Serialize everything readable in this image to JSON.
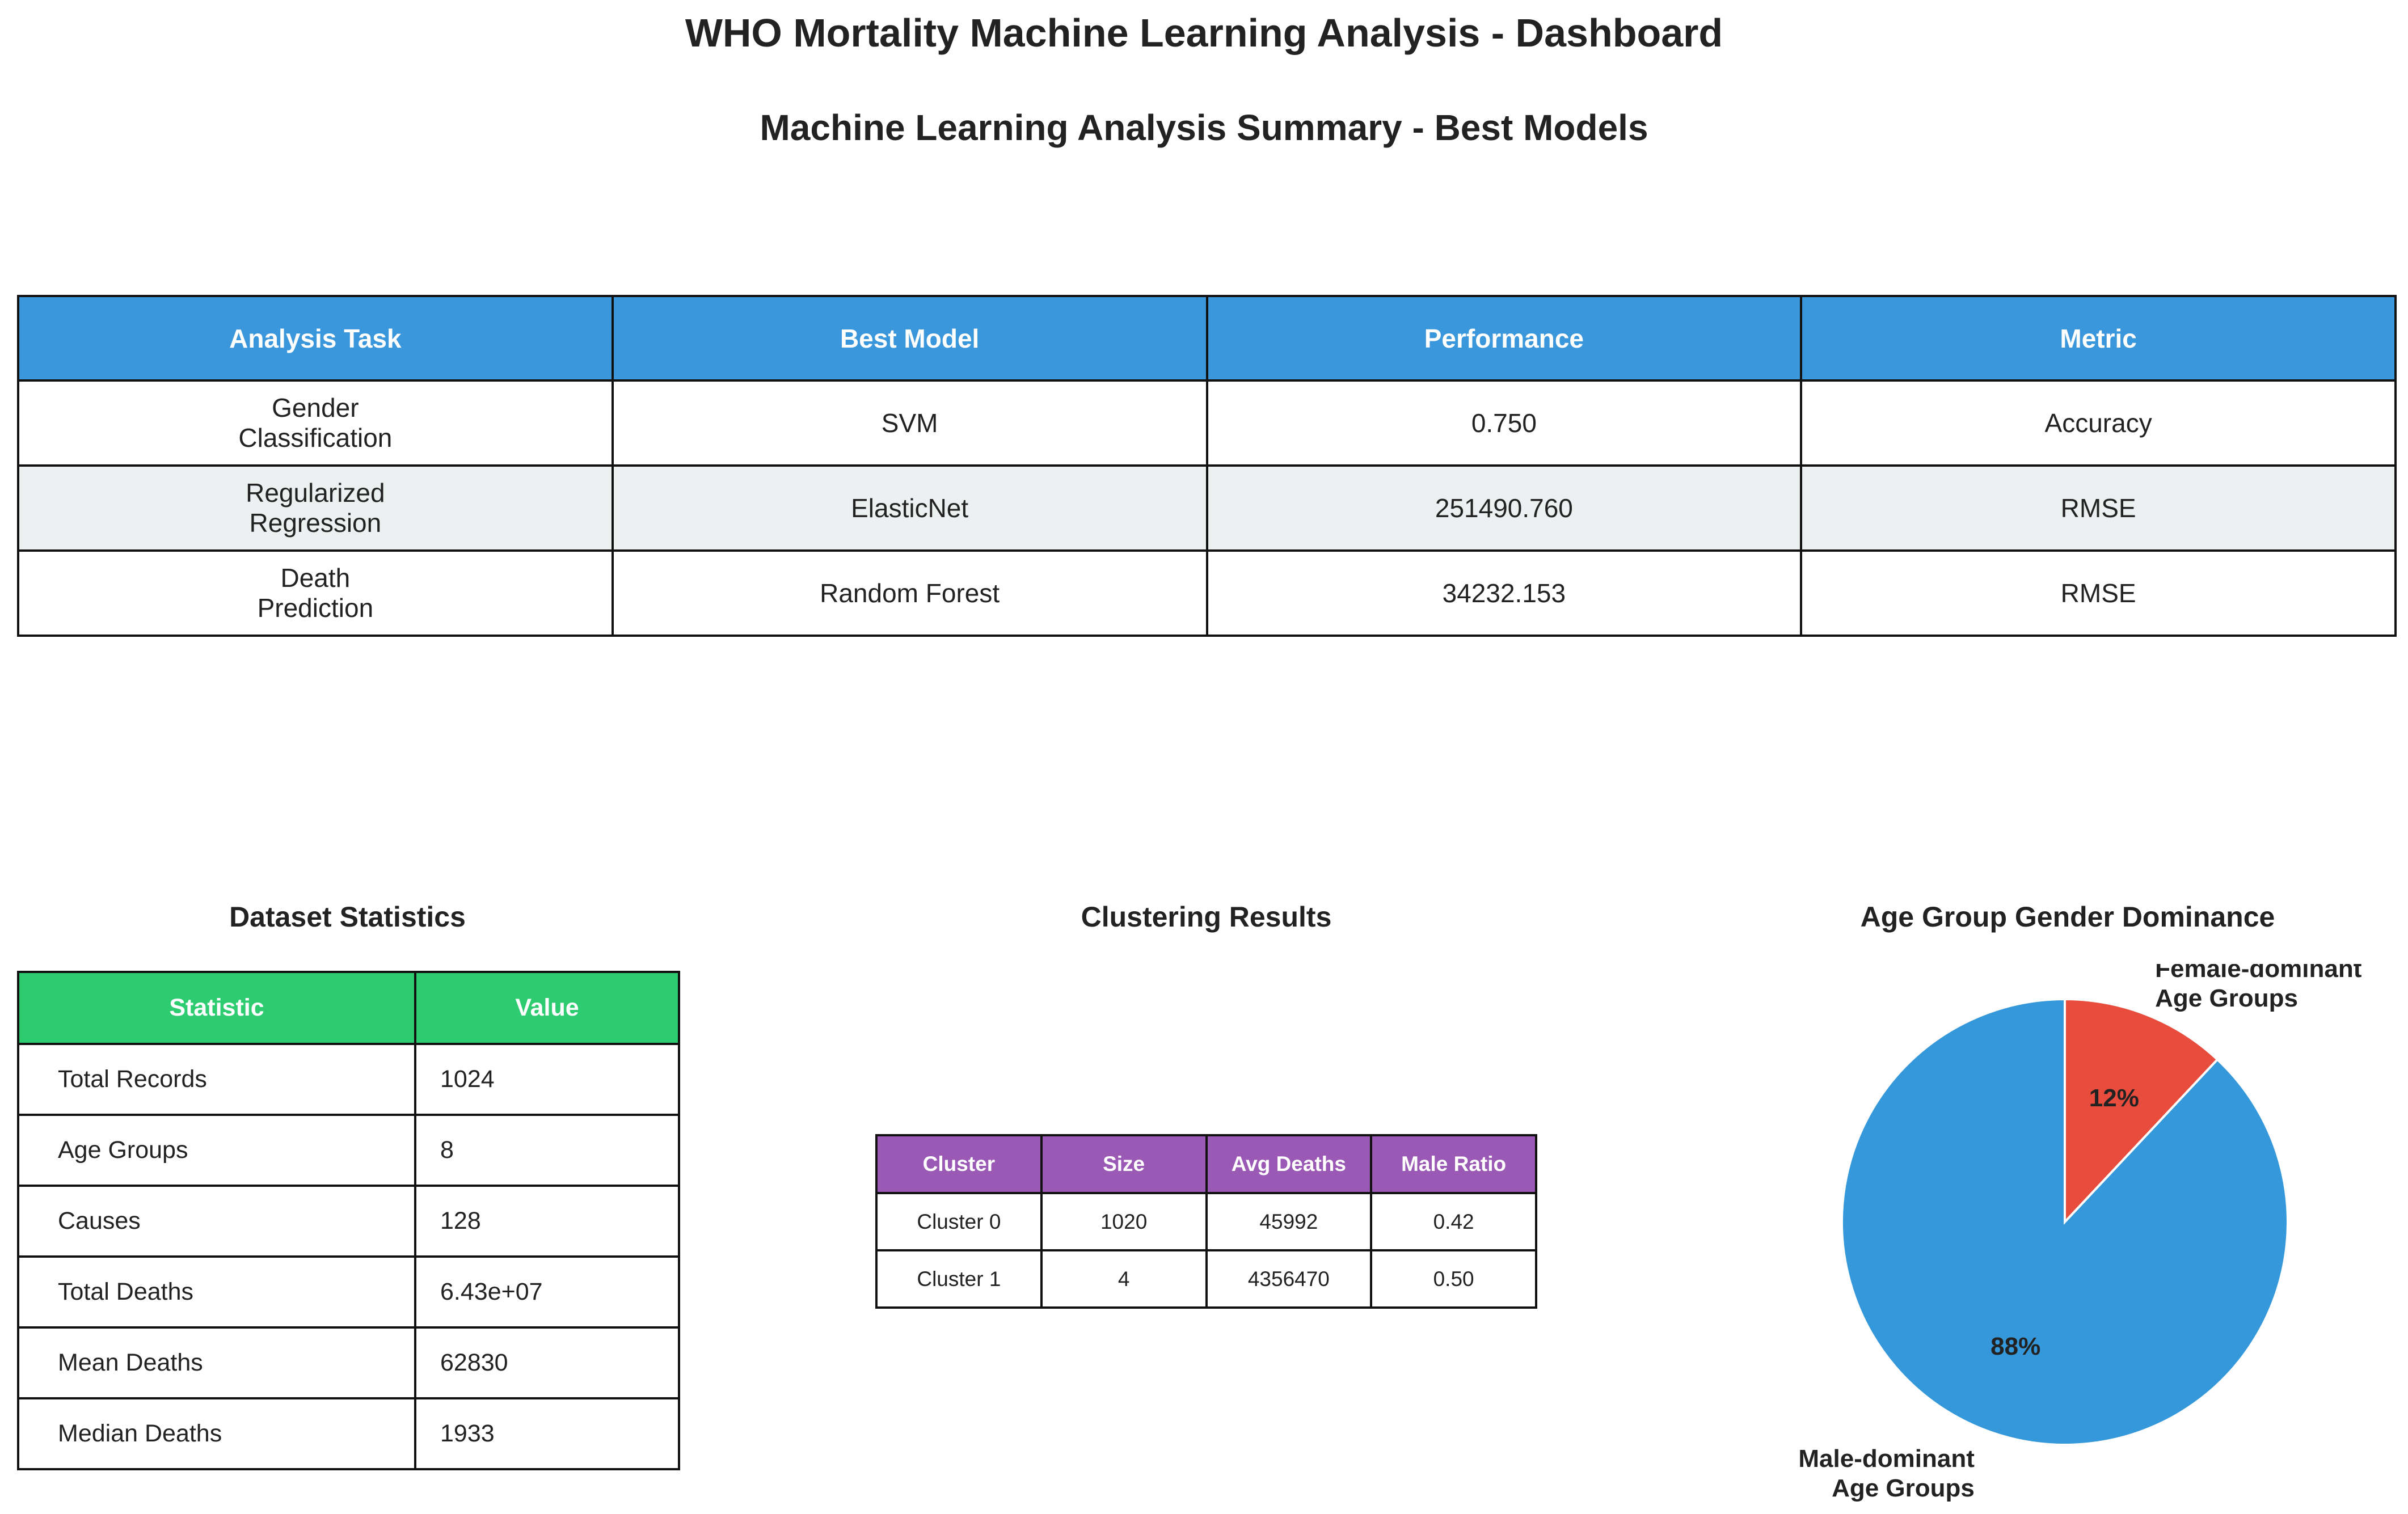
{
  "main_title": "WHO Mortality Machine Learning Analysis - Dashboard",
  "models": {
    "title": "Machine Learning Analysis Summary - Best Models",
    "header_color": "#3b97dc",
    "alt_row_color": "#ecf0f1",
    "columns": [
      "Analysis Task",
      "Best Model",
      "Performance",
      "Metric"
    ],
    "rows": [
      {
        "task_line1": "Gender",
        "task_line2": "Classification",
        "model": "SVM",
        "performance": "0.750",
        "metric": "Accuracy"
      },
      {
        "task_line1": "Regularized",
        "task_line2": "Regression",
        "model": "ElasticNet",
        "performance": "251490.760",
        "metric": "RMSE"
      },
      {
        "task_line1": "Death",
        "task_line2": "Prediction",
        "model": "Random Forest",
        "performance": "34232.153",
        "metric": "RMSE"
      }
    ]
  },
  "dataset_stats": {
    "title": "Dataset Statistics",
    "header_color": "#2ecc71",
    "columns": [
      "Statistic",
      "Value"
    ],
    "rows": [
      {
        "label": "Total Records",
        "value": "1024"
      },
      {
        "label": "Age Groups",
        "value": "8"
      },
      {
        "label": "Causes",
        "value": "128"
      },
      {
        "label": "Total Deaths",
        "value": "6.43e+07"
      },
      {
        "label": "Mean Deaths",
        "value": "62830"
      },
      {
        "label": "Median Deaths",
        "value": "1933"
      }
    ]
  },
  "clustering": {
    "title": "Clustering Results",
    "header_color": "#9b59b6",
    "columns": [
      "Cluster",
      "Size",
      "Avg Deaths",
      "Male Ratio"
    ],
    "rows": [
      {
        "cluster": "Cluster 0",
        "size": "1020",
        "avg_deaths": "45992",
        "male_ratio": "0.42"
      },
      {
        "cluster": "Cluster 1",
        "size": "4",
        "avg_deaths": "4356470",
        "male_ratio": "0.50"
      }
    ]
  },
  "chart_data": {
    "type": "pie",
    "title": "Age Group Gender Dominance",
    "slices": [
      {
        "label_line1": "Female-dominant",
        "label_line2": "Age Groups",
        "value": 12,
        "pct_label": "12%",
        "color": "#e74c3c"
      },
      {
        "label_line1": "Male-dominant",
        "label_line2": "Age Groups",
        "value": 88,
        "pct_label": "88%",
        "color": "#3498db"
      }
    ]
  }
}
